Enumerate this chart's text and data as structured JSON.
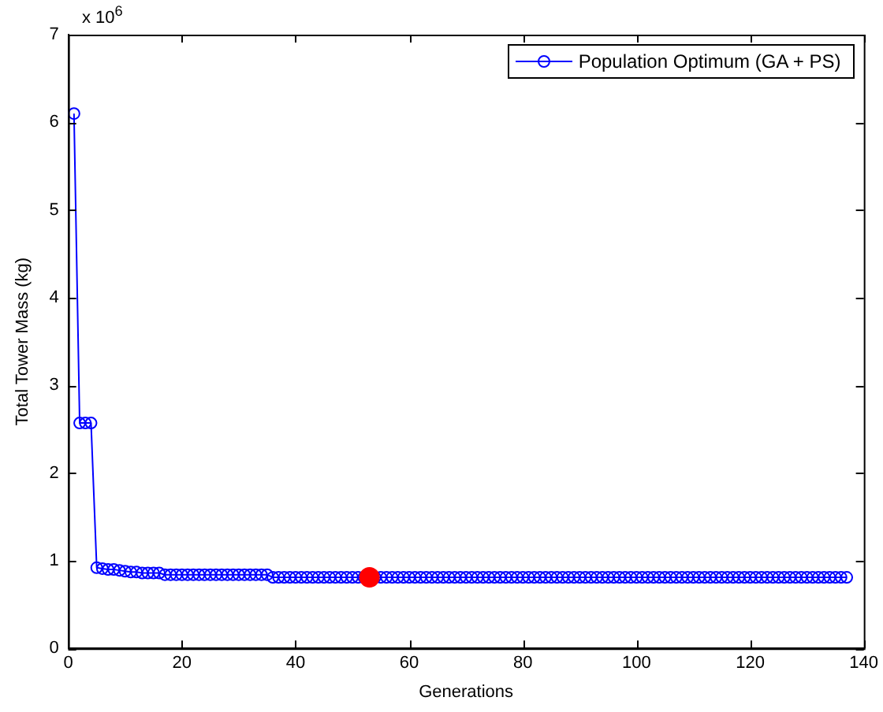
{
  "chart_data": {
    "type": "line",
    "xlabel": "Generations",
    "ylabel": "Total Tower Mass (kg)",
    "annotations": [
      "x 10$^{6}$"
    ],
    "x": [
      1,
      2,
      3,
      4,
      5,
      6,
      7,
      8,
      9,
      10,
      11,
      12,
      13,
      14,
      15,
      16,
      17,
      18,
      19,
      20,
      21,
      22,
      23,
      24,
      25,
      26,
      27,
      28,
      29,
      30,
      31,
      32,
      33,
      34,
      35,
      36,
      37,
      38,
      39,
      40,
      41,
      42,
      43,
      44,
      45,
      46,
      47,
      48,
      49,
      50,
      51,
      52,
      53,
      54,
      55,
      56,
      57,
      58,
      59,
      60,
      61,
      62,
      63,
      64,
      65,
      66,
      67,
      68,
      69,
      70,
      71,
      72,
      73,
      74,
      75,
      76,
      77,
      78,
      79,
      80,
      81,
      82,
      83,
      84,
      85,
      86,
      87,
      88,
      89,
      90,
      91,
      92,
      93,
      94,
      95,
      96,
      97,
      98,
      99,
      100,
      101,
      102,
      103,
      104,
      105,
      106,
      107,
      108,
      109,
      110,
      111,
      112,
      113,
      114,
      115,
      116,
      117,
      118,
      119,
      120,
      121,
      122,
      123,
      124,
      125,
      126,
      127,
      128,
      129,
      130,
      131,
      132,
      133,
      134,
      135,
      136,
      137
    ],
    "series": [
      {
        "name": "Population Optimum (GA + PS)",
        "color": "#0000ff",
        "values": [
          6.1,
          2.57,
          2.57,
          2.57,
          0.92,
          0.91,
          0.9,
          0.9,
          0.89,
          0.88,
          0.87,
          0.87,
          0.86,
          0.86,
          0.86,
          0.86,
          0.84,
          0.84,
          0.84,
          0.84,
          0.84,
          0.84,
          0.84,
          0.84,
          0.84,
          0.84,
          0.84,
          0.84,
          0.84,
          0.84,
          0.84,
          0.84,
          0.84,
          0.84,
          0.84,
          0.81,
          0.81,
          0.81,
          0.81,
          0.81,
          0.81,
          0.81,
          0.81,
          0.81,
          0.81,
          0.81,
          0.81,
          0.81,
          0.81,
          0.81,
          0.81,
          0.81,
          null,
          0.81,
          0.81,
          0.81,
          0.81,
          0.81,
          0.81,
          0.81,
          0.81,
          0.81,
          0.81,
          0.81,
          0.81,
          0.81,
          0.81,
          0.81,
          0.81,
          0.81,
          0.81,
          0.81,
          0.81,
          0.81,
          0.81,
          0.81,
          0.81,
          0.81,
          0.81,
          0.81,
          0.81,
          0.81,
          0.81,
          0.81,
          0.81,
          0.81,
          0.81,
          0.81,
          0.81,
          0.81,
          0.81,
          0.81,
          0.81,
          0.81,
          0.81,
          0.81,
          0.81,
          0.81,
          0.81,
          0.81,
          0.81,
          0.81,
          0.81,
          0.81,
          0.81,
          0.81,
          0.81,
          0.81,
          0.81,
          0.81,
          0.81,
          0.81,
          0.81,
          0.81,
          0.81,
          0.81,
          0.81,
          0.81,
          0.81,
          0.81,
          0.81,
          0.81,
          0.81,
          0.81,
          0.81,
          0.81,
          0.81,
          0.81,
          0.81,
          0.81,
          0.81,
          0.81,
          0.81,
          0.81,
          0.81,
          0.81,
          0.81
        ]
      },
      {
        "type": "scatter",
        "color": "#ff0000",
        "x": [
          53
        ],
        "values": [
          0.81
        ]
      }
    ],
    "xlim": [
      0,
      140
    ],
    "xticks": [
      0,
      20,
      40,
      60,
      80,
      100,
      120,
      140
    ],
    "ylim": [
      0,
      7
    ],
    "yticks": [
      0,
      1,
      2,
      3,
      4,
      5,
      6,
      7
    ],
    "grid": false,
    "legend": "top right",
    "marker": "circle",
    "line_style": "solid"
  }
}
